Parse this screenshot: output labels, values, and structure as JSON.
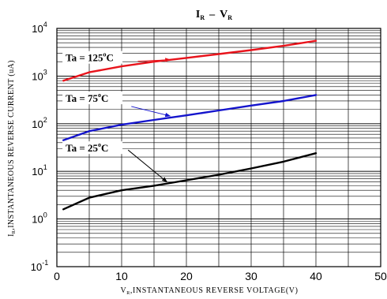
{
  "chart_data": {
    "type": "line",
    "title": {
      "main1": "I",
      "sub1": "R",
      "dash": "–",
      "main2": "V",
      "sub2": "R"
    },
    "xlabel": {
      "main": "V",
      "sub": "R",
      "rest": ",INSTANTANEOUS REVERSE  VOLTAGE(V)"
    },
    "ylabel": {
      "main": "I",
      "sub": "R",
      "rest": ",INSTANTANEOUS REVERSE CURRENT (uA)"
    },
    "xlim": [
      0,
      50
    ],
    "ylim": [
      0.1,
      10000
    ],
    "yscale": "log",
    "grid": true,
    "x_ticks": [
      "0",
      "10",
      "20",
      "30",
      "40",
      "50"
    ],
    "y_ticks": [
      {
        "base": "10",
        "exp": "-1"
      },
      {
        "base": "10",
        "exp": "0"
      },
      {
        "base": "10",
        "exp": "1"
      },
      {
        "base": "10",
        "exp": "2"
      },
      {
        "base": "10",
        "exp": "3"
      },
      {
        "base": "10",
        "exp": "4"
      }
    ],
    "series": [
      {
        "name": "Ta = 125°C",
        "label": {
          "pre": "Ta = 125",
          "deg": "o",
          "post": "C"
        },
        "color": "#e8141c",
        "x": [
          1,
          5,
          10,
          15,
          20,
          25,
          30,
          35,
          40
        ],
        "y": [
          800,
          1200,
          1600,
          2000,
          2400,
          2900,
          3500,
          4300,
          5500
        ],
        "label_at": [
          0.5,
          2200
        ],
        "arrow_from": [
          12.5,
          2050
        ],
        "arrow_to": [
          17.5,
          2200
        ]
      },
      {
        "name": "Ta = 75°C",
        "label": {
          "pre": "Ta = 75",
          "deg": "o",
          "post": "C"
        },
        "color": "#1414cc",
        "x": [
          1,
          5,
          10,
          15,
          20,
          25,
          30,
          35,
          40
        ],
        "y": [
          45,
          70,
          95,
          120,
          150,
          190,
          240,
          300,
          400
        ],
        "label_at": [
          0.5,
          310
        ],
        "arrow_from": [
          11.5,
          230
        ],
        "arrow_to": [
          17.5,
          145
        ]
      },
      {
        "name": "Ta = 25°C",
        "label": {
          "pre": "Ta = 25",
          "deg": "o",
          "post": "C"
        },
        "color": "#000000",
        "x": [
          1,
          5,
          10,
          15,
          20,
          25,
          30,
          35,
          40
        ],
        "y": [
          1.6,
          2.8,
          4.0,
          5.0,
          6.5,
          8.5,
          11.5,
          16,
          24
        ],
        "label_at": [
          0.5,
          28
        ],
        "arrow_from": [
          11,
          28
        ],
        "arrow_to": [
          17,
          6.0
        ]
      }
    ]
  }
}
